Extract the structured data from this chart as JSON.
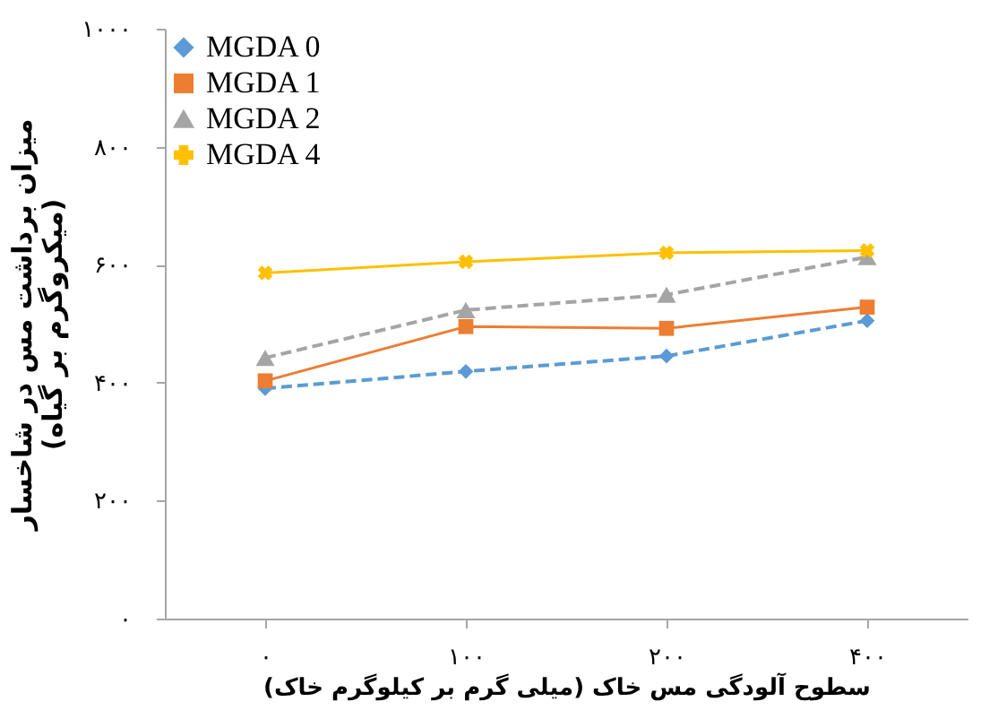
{
  "chart_data": {
    "type": "line",
    "xlabel": "سطوح آلودگی مس خاک (میلی گرم بر کیلوگرم خاک)",
    "ylabel": "میزان برداشت مس در شاخسار\n(میکروگرم بر گیاه)",
    "categories": [
      "۰",
      "۱۰۰",
      "۲۰۰",
      "۴۰۰"
    ],
    "ylim": [
      0,
      1000
    ],
    "yticks": [
      {
        "value": 0,
        "label": "۰"
      },
      {
        "value": 200,
        "label": "۲۰۰"
      },
      {
        "value": 400,
        "label": "۴۰۰"
      },
      {
        "value": 600,
        "label": "۶۰۰"
      },
      {
        "value": 800,
        "label": "۸۰۰"
      },
      {
        "value": 1000,
        "label": "۱۰۰۰"
      }
    ],
    "grid": false,
    "legend": "top left",
    "series": [
      {
        "name": "MGDA 0",
        "color": "#5b9bd5",
        "marker": "diamond",
        "line_style": "dashed",
        "values": [
          390,
          419,
          445,
          505
        ]
      },
      {
        "name": "MGDA 1",
        "color": "#ed7d31",
        "marker": "square",
        "line_style": "solid",
        "values": [
          403,
          495,
          492,
          528
        ]
      },
      {
        "name": "MGDA 2",
        "color": "#a5a5a5",
        "marker": "triangle",
        "line_style": "dashed",
        "values": [
          442,
          523,
          549,
          613
        ]
      },
      {
        "name": "MGDA 4",
        "color": "#ffc000",
        "marker": "cross",
        "line_style": "solid",
        "values": [
          586,
          605,
          620,
          624
        ]
      }
    ]
  }
}
